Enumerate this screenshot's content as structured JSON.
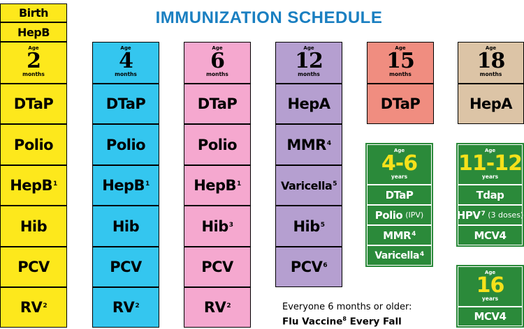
{
  "title": "IMMUNIZATION SCHEDULE",
  "colors": {
    "yellow": "#fde81c",
    "cyan": "#34c6ef",
    "pink": "#f5a8cf",
    "lavender": "#b59fd0",
    "salmon": "#f08d80",
    "tan": "#dcc4a6",
    "green": "#2b8a3a",
    "title_blue": "#1a7fc1"
  },
  "birth": {
    "label": "Birth",
    "vaccine": "HepB"
  },
  "age_word": "Age",
  "months_word": "months",
  "years_word": "years",
  "col2": {
    "age": "2",
    "vaccines": [
      "DTaP",
      "Polio",
      "HepB",
      "Hib",
      "PCV",
      "RV"
    ],
    "sups": [
      "",
      "",
      "1",
      "",
      "",
      "2"
    ]
  },
  "col4": {
    "age": "4",
    "vaccines": [
      "DTaP",
      "Polio",
      "HepB",
      "Hib",
      "PCV",
      "RV"
    ],
    "sups": [
      "",
      "",
      "1",
      "",
      "",
      "2"
    ]
  },
  "col6": {
    "age": "6",
    "vaccines": [
      "DTaP",
      "Polio",
      "HepB",
      "Hib",
      "PCV",
      "RV"
    ],
    "sups": [
      "",
      "",
      "1",
      "3",
      "",
      "2"
    ]
  },
  "col12": {
    "age": "12",
    "vaccines": [
      "HepA",
      "MMR",
      "Varicella",
      "Hib",
      "PCV"
    ],
    "sups": [
      "",
      "4",
      "5",
      "5",
      "6"
    ]
  },
  "col15": {
    "age": "15",
    "vaccines": [
      "DTaP"
    ]
  },
  "col18": {
    "age": "18",
    "vaccines": [
      "HepA"
    ]
  },
  "col46": {
    "age": "4-6",
    "vaccines": [
      "DTaP",
      "Polio",
      "MMR",
      "Varicella"
    ],
    "sups": [
      "",
      "",
      "4",
      "4"
    ],
    "polio_note": "(IPV)"
  },
  "col1112": {
    "age": "11-12",
    "vaccines": [
      "Tdap",
      "HPV",
      "MCV4"
    ],
    "sups": [
      "",
      "7",
      ""
    ],
    "hpv_note": "(3 doses)"
  },
  "col16": {
    "age": "16",
    "vaccines": [
      "MCV4"
    ]
  },
  "note": {
    "line1": "Everyone 6 months or older:",
    "line2_a": "Flu Vaccine",
    "line2_sup": "8",
    "line2_b": " Every Fall"
  }
}
